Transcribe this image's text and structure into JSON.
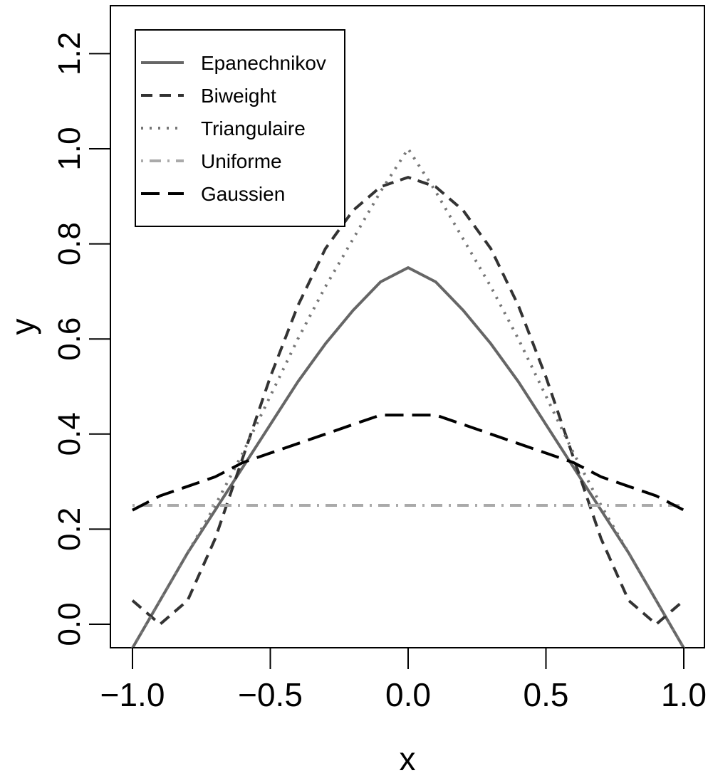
{
  "chart_data": {
    "type": "line",
    "title": "",
    "xlabel": "x",
    "ylabel": "y",
    "xlim": [
      -1.0,
      1.0
    ],
    "ylim": [
      -0.05,
      1.3
    ],
    "x_ticks": [
      -1.0,
      -0.5,
      0.0,
      0.5,
      1.0
    ],
    "x_tick_labels": [
      "−1.0",
      "−0.5",
      "0.0",
      "0.5",
      "1.0"
    ],
    "y_ticks": [
      0.0,
      0.2,
      0.4,
      0.6,
      0.8,
      1.0,
      1.2
    ],
    "y_tick_labels": [
      "0.0",
      "0.2",
      "0.4",
      "0.6",
      "0.8",
      "1.0",
      "1.2"
    ],
    "grid": false,
    "legend_position": "top-left",
    "x": [
      -1.0,
      -0.9,
      -0.8,
      -0.7,
      -0.6,
      -0.5,
      -0.4,
      -0.3,
      -0.2,
      -0.1,
      0.0,
      0.1,
      0.2,
      0.3,
      0.4,
      0.5,
      0.6,
      0.7,
      0.8,
      0.9,
      1.0
    ],
    "series": [
      {
        "name": "Epanechnikov",
        "color": "#666666",
        "dash": "solid",
        "values": [
          -0.05,
          0.05,
          0.15,
          0.24,
          0.33,
          0.42,
          0.51,
          0.59,
          0.66,
          0.72,
          0.75,
          0.72,
          0.66,
          0.59,
          0.51,
          0.42,
          0.33,
          0.24,
          0.15,
          0.05,
          -0.05
        ]
      },
      {
        "name": "Biweight",
        "color": "#333333",
        "dash": "dashed",
        "values": [
          0.05,
          0.0,
          0.05,
          0.18,
          0.35,
          0.52,
          0.67,
          0.79,
          0.87,
          0.92,
          0.94,
          0.92,
          0.87,
          0.79,
          0.67,
          0.52,
          0.35,
          0.18,
          0.05,
          0.0,
          0.05
        ]
      },
      {
        "name": "Triangulaire",
        "color": "#777777",
        "dash": "dotted",
        "values": [
          -0.05,
          0.05,
          0.15,
          0.25,
          0.36,
          0.48,
          0.6,
          0.71,
          0.81,
          0.91,
          1.0,
          0.91,
          0.81,
          0.71,
          0.6,
          0.48,
          0.36,
          0.25,
          0.15,
          0.05,
          -0.05
        ]
      },
      {
        "name": "Uniforme",
        "color": "#aaaaaa",
        "dash": "dotdash",
        "values": [
          0.25,
          0.25,
          0.25,
          0.25,
          0.25,
          0.25,
          0.25,
          0.25,
          0.25,
          0.25,
          0.25,
          0.25,
          0.25,
          0.25,
          0.25,
          0.25,
          0.25,
          0.25,
          0.25,
          0.25,
          0.25
        ]
      },
      {
        "name": "Gaussien",
        "color": "#000000",
        "dash": "longdash",
        "values": [
          0.24,
          0.27,
          0.29,
          0.31,
          0.34,
          0.36,
          0.38,
          0.4,
          0.42,
          0.44,
          0.44,
          0.44,
          0.42,
          0.4,
          0.38,
          0.36,
          0.34,
          0.31,
          0.29,
          0.27,
          0.24
        ]
      }
    ]
  }
}
